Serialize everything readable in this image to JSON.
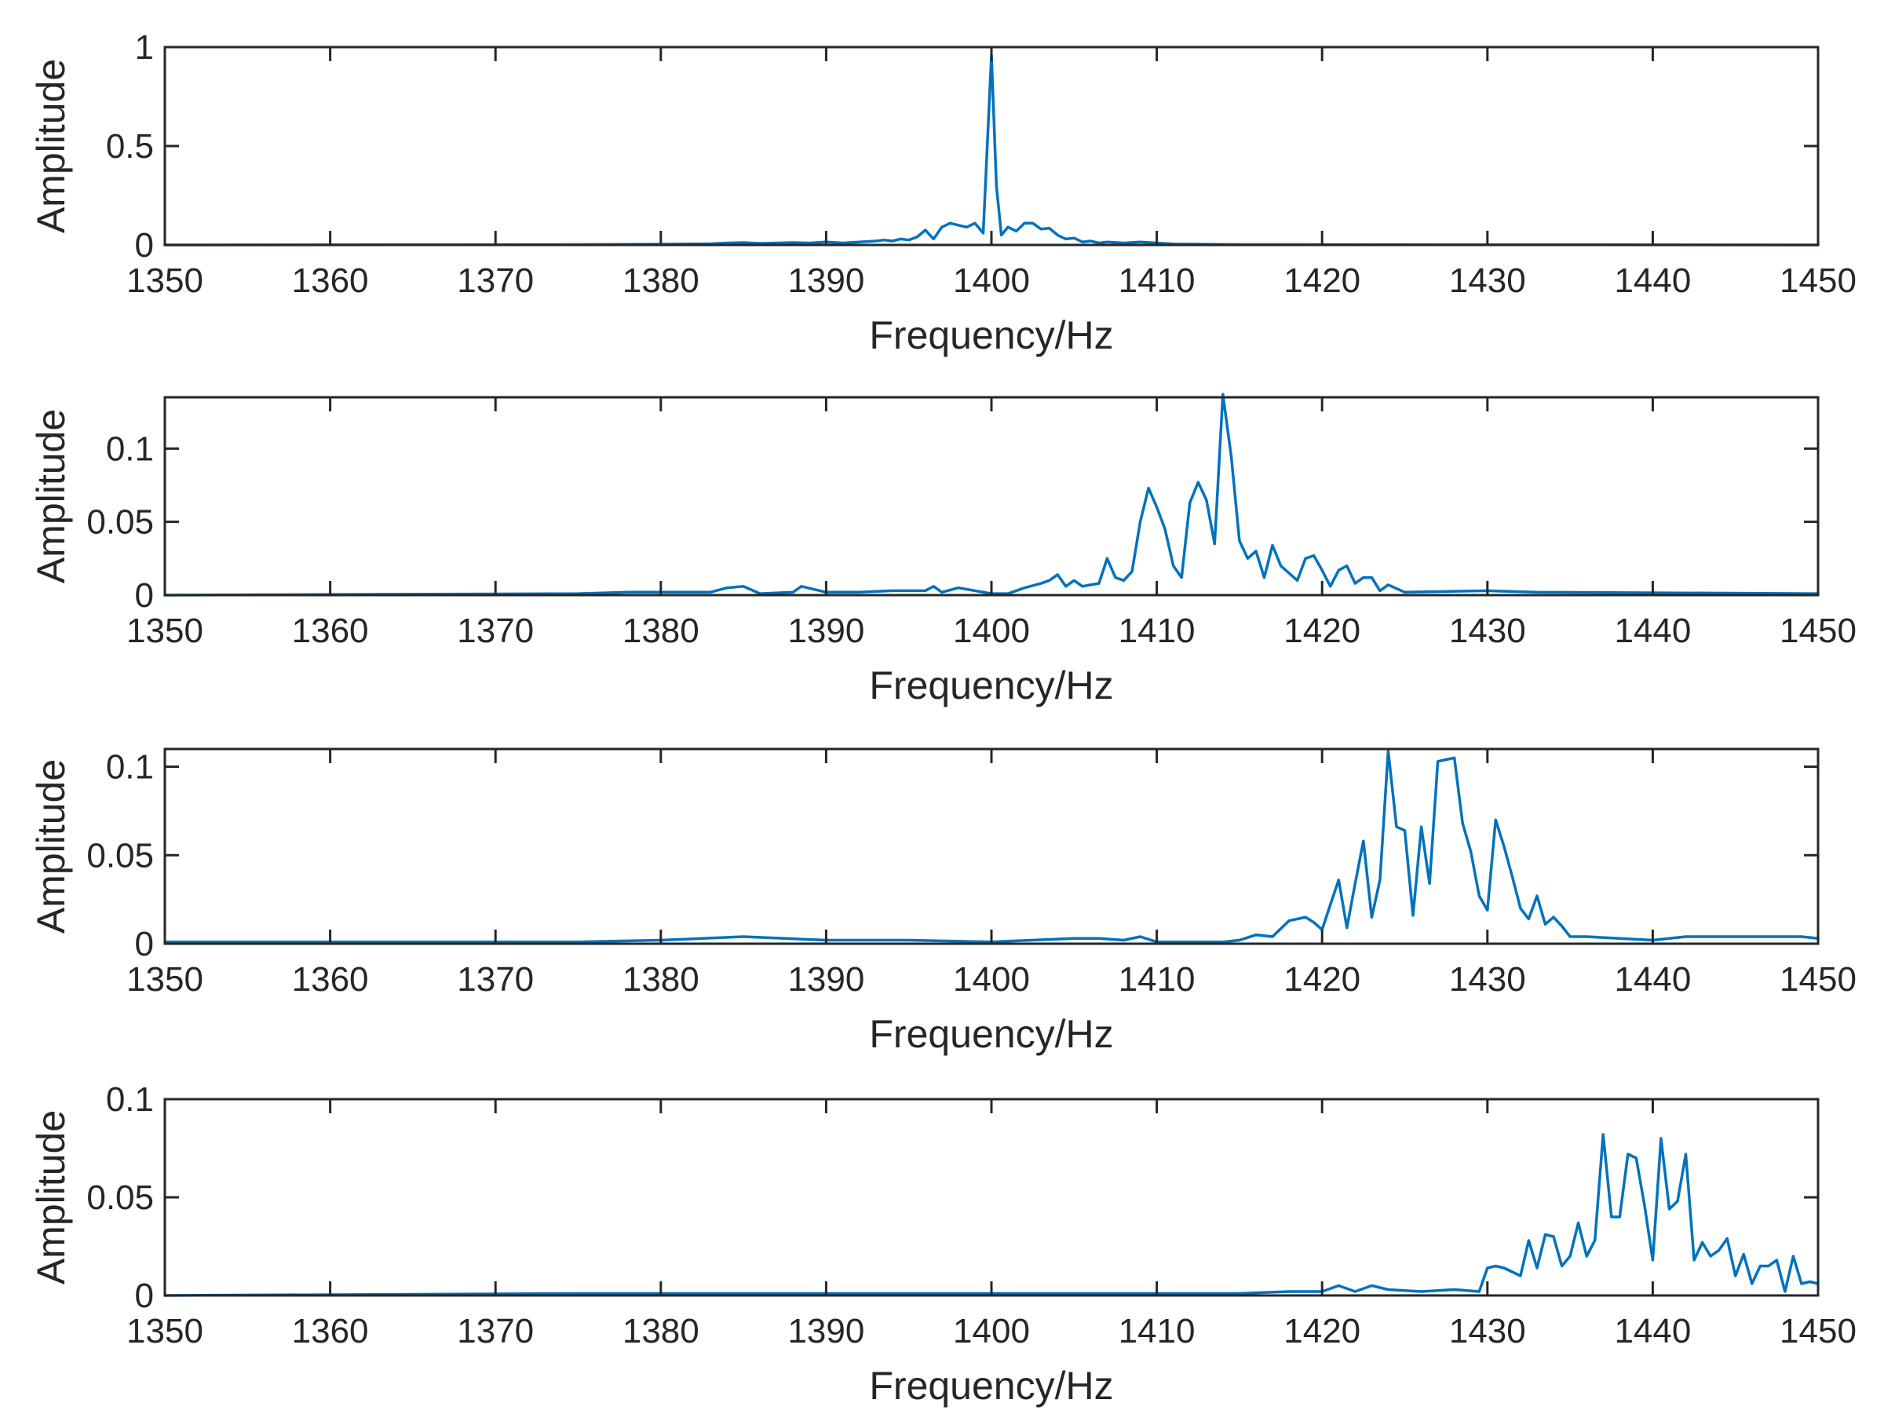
{
  "colors": {
    "series": "#0072BD",
    "axis": "#262626",
    "background": "#ffffff"
  },
  "chart_data": [
    {
      "type": "line",
      "xlabel": "Frequency/Hz",
      "ylabel": "Amplitude",
      "xlim": [
        1350,
        1450
      ],
      "ylim": [
        0,
        1
      ],
      "xticks": [
        1350,
        1360,
        1370,
        1380,
        1390,
        1400,
        1410,
        1420,
        1430,
        1440,
        1450
      ],
      "xtick_labels": [
        "1350",
        "1360",
        "1370",
        "1380",
        "1390",
        "1400",
        "1410",
        "1420",
        "1430",
        "1440",
        "1450"
      ],
      "yticks": [
        0,
        0.5,
        1
      ],
      "ytick_labels": [
        "0",
        "0.5",
        "1"
      ],
      "grid": false,
      "series": [
        {
          "x": [
            1350,
            1375,
            1380,
            1383,
            1384,
            1385,
            1386,
            1387,
            1388,
            1389,
            1390,
            1391,
            1392,
            1393,
            1393.5,
            1394,
            1394.5,
            1395,
            1395.5,
            1396,
            1396.5,
            1397,
            1397.5,
            1398,
            1398.5,
            1399,
            1399.5,
            1400,
            1400.3,
            1400.6,
            1401,
            1401.5,
            1402,
            1402.5,
            1403,
            1403.5,
            1404,
            1404.5,
            1405,
            1405.5,
            1406,
            1406.5,
            1407,
            1408,
            1409,
            1410,
            1411,
            1415,
            1450
          ],
          "y": [
            0,
            0.002,
            0.004,
            0.006,
            0.01,
            0.012,
            0.008,
            0.01,
            0.012,
            0.01,
            0.015,
            0.01,
            0.015,
            0.02,
            0.025,
            0.02,
            0.03,
            0.025,
            0.04,
            0.075,
            0.03,
            0.09,
            0.11,
            0.1,
            0.09,
            0.11,
            0.06,
            0.96,
            0.3,
            0.05,
            0.09,
            0.07,
            0.11,
            0.11,
            0.08,
            0.085,
            0.05,
            0.03,
            0.035,
            0.015,
            0.02,
            0.01,
            0.015,
            0.01,
            0.015,
            0.01,
            0.005,
            0.002,
            0
          ]
        }
      ]
    },
    {
      "type": "line",
      "xlabel": "Frequency/Hz",
      "ylabel": "Amplitude",
      "xlim": [
        1350,
        1450
      ],
      "ylim": [
        0,
        0.135
      ],
      "xticks": [
        1350,
        1360,
        1370,
        1380,
        1390,
        1400,
        1410,
        1420,
        1430,
        1440,
        1450
      ],
      "xtick_labels": [
        "1350",
        "1360",
        "1370",
        "1380",
        "1390",
        "1400",
        "1410",
        "1420",
        "1430",
        "1440",
        "1450"
      ],
      "yticks": [
        0,
        0.05,
        0.1
      ],
      "ytick_labels": [
        "0",
        "0.05",
        "0.1"
      ],
      "grid": false,
      "series": [
        {
          "x": [
            1350,
            1375,
            1378,
            1380,
            1383,
            1384,
            1385,
            1386,
            1388,
            1388.5,
            1390,
            1392,
            1394,
            1396,
            1396.5,
            1397,
            1398,
            1400,
            1401,
            1402,
            1403,
            1403.5,
            1404,
            1404.5,
            1405,
            1405.5,
            1406,
            1406.5,
            1407,
            1407.5,
            1408,
            1408.5,
            1409,
            1409.5,
            1410,
            1410.5,
            1411,
            1411.5,
            1412,
            1412.5,
            1413,
            1413.5,
            1414,
            1414.5,
            1415,
            1415.5,
            1416,
            1416.5,
            1417,
            1417.5,
            1418,
            1418.5,
            1419,
            1419.5,
            1420,
            1420.5,
            1421,
            1421.5,
            1422,
            1422.5,
            1423,
            1423.5,
            1424,
            1425,
            1430,
            1433,
            1450
          ],
          "y": [
            0,
            0.001,
            0.002,
            0.002,
            0.002,
            0.005,
            0.006,
            0.001,
            0.002,
            0.006,
            0.002,
            0.002,
            0.003,
            0.003,
            0.006,
            0.002,
            0.005,
            0.001,
            0.001,
            0.005,
            0.008,
            0.01,
            0.014,
            0.006,
            0.01,
            0.006,
            0.007,
            0.008,
            0.025,
            0.012,
            0.01,
            0.016,
            0.05,
            0.073,
            0.06,
            0.045,
            0.02,
            0.012,
            0.063,
            0.077,
            0.065,
            0.035,
            0.137,
            0.095,
            0.037,
            0.025,
            0.03,
            0.012,
            0.034,
            0.02,
            0.015,
            0.01,
            0.025,
            0.027,
            0.017,
            0.006,
            0.017,
            0.02,
            0.008,
            0.012,
            0.012,
            0.003,
            0.007,
            0.002,
            0.003,
            0.002,
            0.001
          ]
        }
      ]
    },
    {
      "type": "line",
      "xlabel": "Frequency/Hz",
      "ylabel": "Amplitude",
      "xlim": [
        1350,
        1450
      ],
      "ylim": [
        0,
        0.11
      ],
      "xticks": [
        1350,
        1360,
        1370,
        1380,
        1390,
        1400,
        1410,
        1420,
        1430,
        1440,
        1450
      ],
      "xtick_labels": [
        "1350",
        "1360",
        "1370",
        "1380",
        "1390",
        "1400",
        "1410",
        "1420",
        "1430",
        "1440",
        "1450"
      ],
      "yticks": [
        0,
        0.05,
        0.1
      ],
      "ytick_labels": [
        "0",
        "0.05",
        "0.1"
      ],
      "grid": false,
      "series": [
        {
          "x": [
            1350,
            1375,
            1380,
            1385,
            1390,
            1395,
            1400,
            1405,
            1406.5,
            1408,
            1409,
            1410,
            1414,
            1415,
            1416,
            1417,
            1418,
            1419,
            1419.5,
            1420,
            1420.5,
            1421,
            1421.5,
            1422,
            1422.5,
            1423,
            1423.5,
            1424,
            1424.5,
            1425,
            1425.5,
            1426,
            1426.5,
            1427,
            1427.5,
            1428,
            1428.5,
            1429,
            1429.5,
            1430,
            1430.5,
            1431,
            1431.5,
            1432,
            1432.5,
            1433,
            1433.5,
            1434,
            1434.5,
            1435,
            1436,
            1440,
            1442,
            1444,
            1446,
            1448,
            1449,
            1450
          ],
          "y": [
            0.001,
            0.001,
            0.002,
            0.004,
            0.002,
            0.002,
            0.001,
            0.003,
            0.003,
            0.002,
            0.004,
            0.001,
            0.001,
            0.002,
            0.005,
            0.004,
            0.013,
            0.015,
            0.012,
            0.008,
            0.022,
            0.036,
            0.009,
            0.034,
            0.058,
            0.015,
            0.036,
            0.109,
            0.066,
            0.064,
            0.016,
            0.066,
            0.034,
            0.103,
            0.104,
            0.105,
            0.068,
            0.052,
            0.027,
            0.019,
            0.07,
            0.055,
            0.038,
            0.02,
            0.014,
            0.027,
            0.011,
            0.015,
            0.01,
            0.004,
            0.004,
            0.002,
            0.004,
            0.004,
            0.004,
            0.004,
            0.004,
            0.003
          ]
        }
      ]
    },
    {
      "type": "line",
      "xlabel": "Frequency/Hz",
      "ylabel": "Amplitude",
      "xlim": [
        1350,
        1450
      ],
      "ylim": [
        0,
        0.1
      ],
      "xticks": [
        1350,
        1360,
        1370,
        1380,
        1390,
        1400,
        1410,
        1420,
        1430,
        1440,
        1450
      ],
      "xtick_labels": [
        "1350",
        "1360",
        "1370",
        "1380",
        "1390",
        "1400",
        "1410",
        "1420",
        "1430",
        "1440",
        "1450"
      ],
      "yticks": [
        0,
        0.05,
        0.1
      ],
      "ytick_labels": [
        "0",
        "0.05",
        "0.1"
      ],
      "grid": false,
      "series": [
        {
          "x": [
            1350,
            1375,
            1380,
            1385,
            1390,
            1395,
            1400,
            1405,
            1410,
            1415,
            1418,
            1420,
            1421,
            1422,
            1423,
            1424,
            1426,
            1428,
            1429.5,
            1430,
            1430.5,
            1431,
            1431.5,
            1432,
            1432.5,
            1433,
            1433.5,
            1434,
            1434.5,
            1435,
            1435.5,
            1436,
            1436.5,
            1437,
            1437.5,
            1438,
            1438.5,
            1439,
            1439.5,
            1440,
            1440.5,
            1441,
            1441.5,
            1442,
            1442.5,
            1443,
            1443.5,
            1444,
            1444.5,
            1445,
            1445.5,
            1446,
            1446.5,
            1447,
            1447.5,
            1448,
            1448.5,
            1449,
            1449.5,
            1450
          ],
          "y": [
            0,
            0.001,
            0.001,
            0.001,
            0.001,
            0.001,
            0.001,
            0.001,
            0.001,
            0.001,
            0.002,
            0.002,
            0.005,
            0.002,
            0.005,
            0.003,
            0.002,
            0.003,
            0.002,
            0.014,
            0.015,
            0.014,
            0.012,
            0.01,
            0.028,
            0.014,
            0.031,
            0.03,
            0.015,
            0.02,
            0.037,
            0.02,
            0.028,
            0.082,
            0.04,
            0.04,
            0.072,
            0.07,
            0.046,
            0.018,
            0.08,
            0.044,
            0.048,
            0.072,
            0.018,
            0.027,
            0.02,
            0.023,
            0.029,
            0.01,
            0.021,
            0.006,
            0.015,
            0.015,
            0.018,
            0.002,
            0.02,
            0.006,
            0.007,
            0.006
          ]
        }
      ]
    }
  ]
}
